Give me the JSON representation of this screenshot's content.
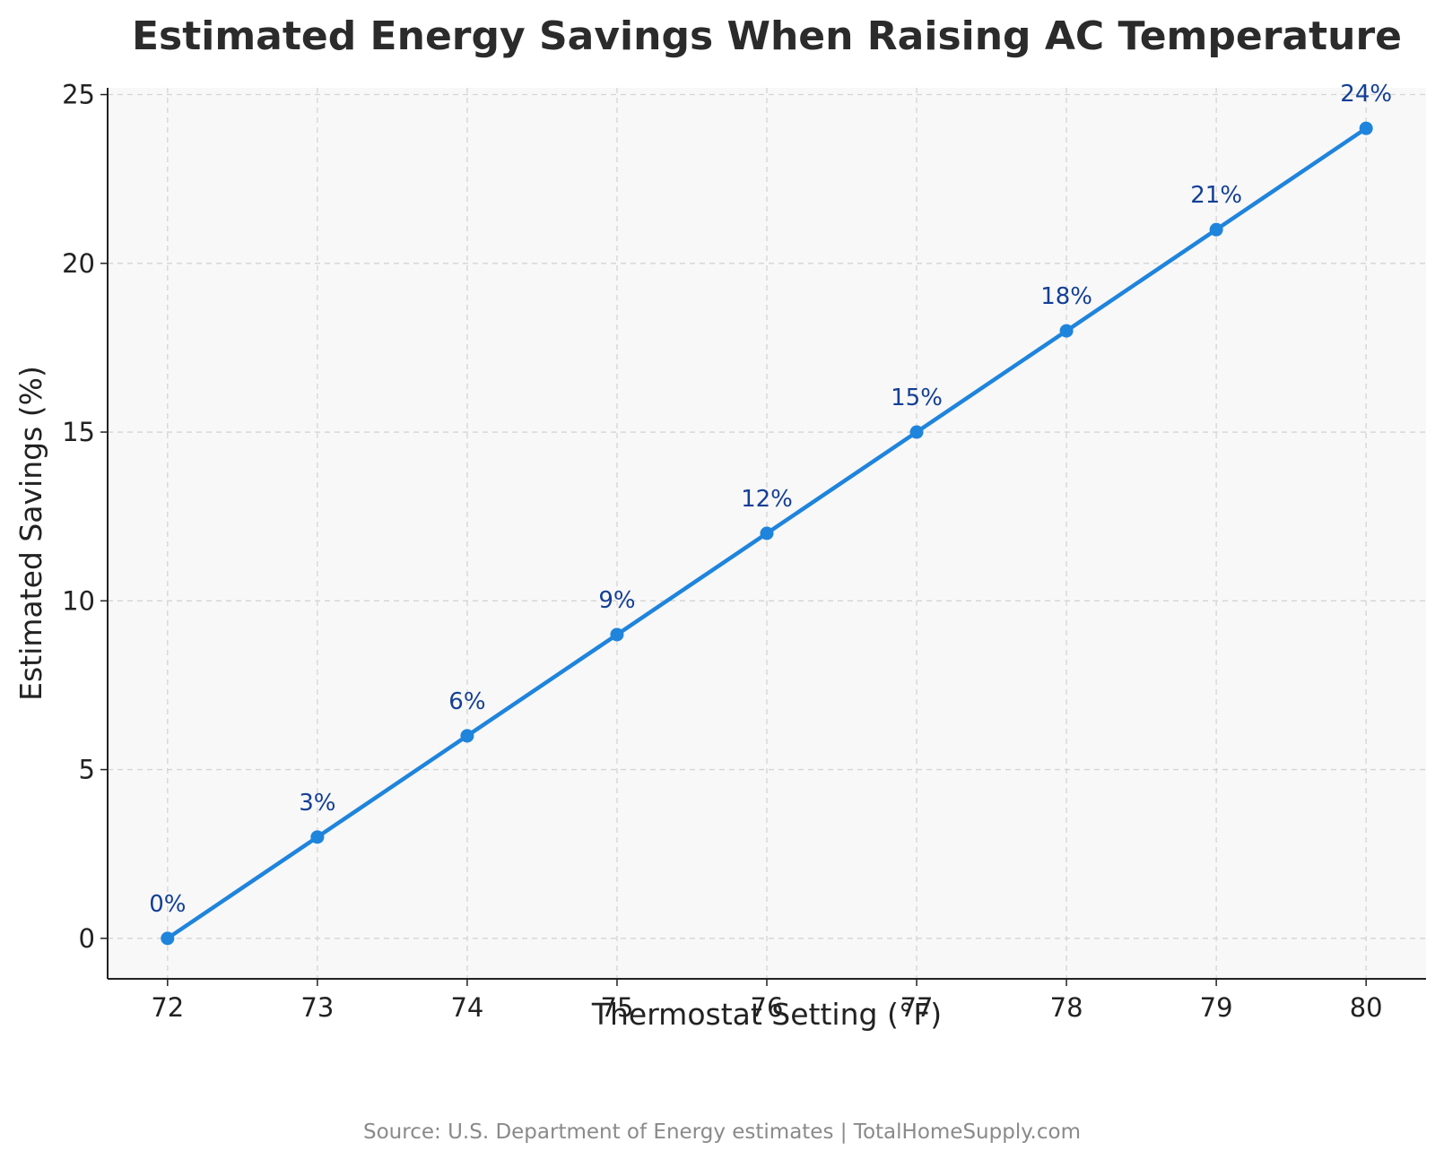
{
  "chart_data": {
    "type": "line",
    "title": "Estimated Energy Savings When Raising AC Temperature",
    "xlabel": "Thermostat Setting (°F)",
    "ylabel": "Estimated Savings (%)",
    "x": [
      72,
      73,
      74,
      75,
      76,
      77,
      78,
      79,
      80
    ],
    "series": [
      {
        "values": [
          0,
          3,
          6,
          9,
          12,
          15,
          18,
          21,
          24
        ]
      }
    ],
    "data_labels": [
      "0%",
      "3%",
      "6%",
      "9%",
      "12%",
      "15%",
      "18%",
      "21%",
      "24%"
    ],
    "xticks": [
      72,
      73,
      74,
      75,
      76,
      77,
      78,
      79,
      80
    ],
    "yticks": [
      0,
      5,
      10,
      15,
      20,
      25
    ],
    "xlim": [
      71.6,
      80.4
    ],
    "ylim": [
      -1.2,
      25.2
    ],
    "grid": true,
    "legend": "none",
    "source": "Source: U.S. Department of Energy estimates | TotalHomeSupply.com",
    "colors": {
      "line": "#1f84dc",
      "marker": "#1f84dc",
      "data_label": "#143f95",
      "plot_background": "#f8f8f8"
    }
  }
}
